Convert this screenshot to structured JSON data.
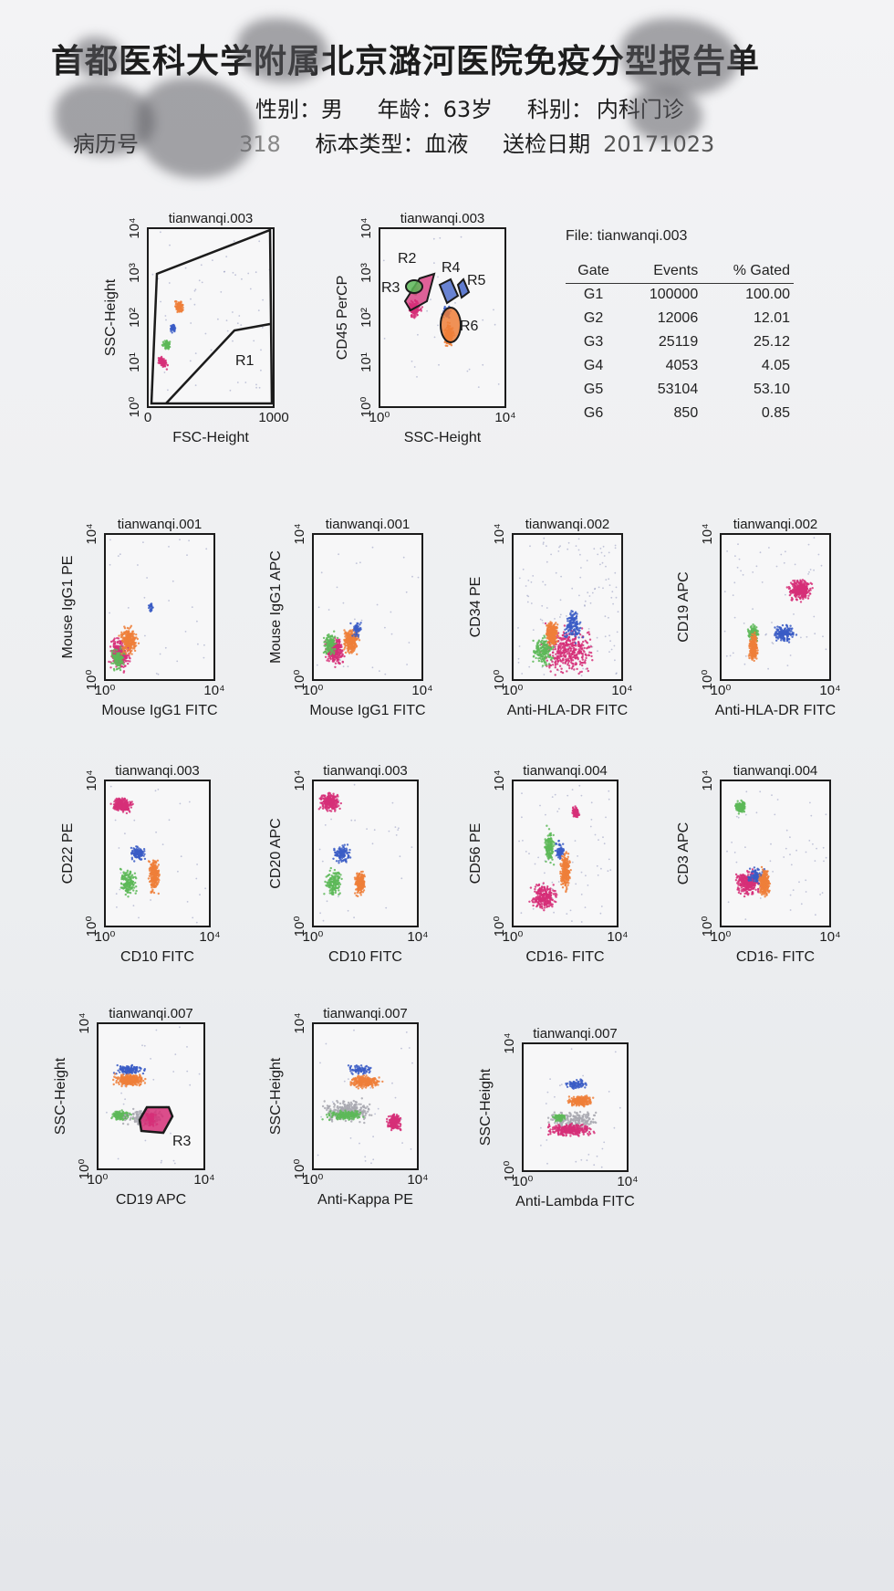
{
  "header": {
    "title": "首都医科大学附属北京潞河医院免疫分型报告单",
    "gender_label": "性别：男",
    "age_label": "年龄：63岁",
    "dept_label": "科别：",
    "dept_value": "内科门诊",
    "record_label": "病历号",
    "record_value": "318",
    "sample_label": "标本类型：血液",
    "date_label": "送检日期",
    "date_value": "20171023"
  },
  "gate_table": {
    "file": "File: tianwanqi.003",
    "columns": [
      "Gate",
      "Events",
      "% Gated"
    ],
    "rows": [
      [
        "G1",
        "100000",
        "100.00"
      ],
      [
        "G2",
        "12006",
        "12.01"
      ],
      [
        "G3",
        "25119",
        "25.12"
      ],
      [
        "G4",
        "4053",
        "4.05"
      ],
      [
        "G5",
        "53104",
        "53.10"
      ],
      [
        "G6",
        "850",
        "0.85"
      ]
    ]
  },
  "colors": {
    "magenta": "#d62f78",
    "orange": "#ef7f3a",
    "green": "#5db858",
    "blue": "#3a5cc6",
    "gray": "#a8a8b0"
  },
  "chart_data": [
    {
      "id": "p1",
      "type": "scatter",
      "title": "tianwanqi.003",
      "xlabel": "FSC-Height",
      "ylabel": "SSC-Height",
      "x_ticks": [
        "0",
        "1000"
      ],
      "y_ticks": [
        "10⁰",
        "10¹",
        "10²",
        "10³",
        "10⁴"
      ],
      "gate_labels": [
        "R1"
      ]
    },
    {
      "id": "p2",
      "type": "scatter",
      "title": "tianwanqi.003",
      "xlabel": "SSC-Height",
      "ylabel": "CD45 PerCP",
      "x_ticks": [
        "10⁰",
        "10⁴"
      ],
      "y_ticks": [
        "10⁰",
        "10¹",
        "10²",
        "10³",
        "10⁴"
      ],
      "gate_labels": [
        "R2",
        "R3",
        "R4",
        "R5",
        "R6"
      ]
    },
    {
      "id": "p3",
      "type": "scatter",
      "title": "tianwanqi.001",
      "xlabel": "Mouse IgG1 FITC",
      "ylabel": "Mouse IgG1 PE",
      "x_ticks": [
        "10⁰",
        "10⁴"
      ],
      "y_ticks": [
        "10⁰",
        "10⁴"
      ]
    },
    {
      "id": "p4",
      "type": "scatter",
      "title": "tianwanqi.001",
      "xlabel": "Mouse IgG1 FITC",
      "ylabel": "Mouse IgG1 APC",
      "x_ticks": [
        "10⁰",
        "10⁴"
      ],
      "y_ticks": [
        "10⁰",
        "10⁴"
      ]
    },
    {
      "id": "p5",
      "type": "scatter",
      "title": "tianwanqi.002",
      "xlabel": "Anti-HLA-DR FITC",
      "ylabel": "CD34 PE",
      "x_ticks": [
        "10⁰",
        "10⁴"
      ],
      "y_ticks": [
        "10⁰",
        "10⁴"
      ]
    },
    {
      "id": "p6",
      "type": "scatter",
      "title": "tianwanqi.002",
      "xlabel": "Anti-HLA-DR FITC",
      "ylabel": "CD19 APC",
      "x_ticks": [
        "10⁰",
        "10⁴"
      ],
      "y_ticks": [
        "10⁰",
        "10⁴"
      ]
    },
    {
      "id": "p7",
      "type": "scatter",
      "title": "tianwanqi.003",
      "xlabel": "CD10 FITC",
      "ylabel": "CD22 PE",
      "x_ticks": [
        "10⁰",
        "10⁴"
      ],
      "y_ticks": [
        "10⁰",
        "10⁴"
      ]
    },
    {
      "id": "p8",
      "type": "scatter",
      "title": "tianwanqi.003",
      "xlabel": "CD10 FITC",
      "ylabel": "CD20 APC",
      "x_ticks": [
        "10⁰",
        "10⁴"
      ],
      "y_ticks": [
        "10⁰",
        "10⁴"
      ]
    },
    {
      "id": "p9",
      "type": "scatter",
      "title": "tianwanqi.004",
      "xlabel": "CD16- FITC",
      "ylabel": "CD56 PE",
      "x_ticks": [
        "10⁰",
        "10⁴"
      ],
      "y_ticks": [
        "10⁰",
        "10⁴"
      ]
    },
    {
      "id": "p10",
      "type": "scatter",
      "title": "tianwanqi.004",
      "xlabel": "CD16- FITC",
      "ylabel": "CD3 APC",
      "x_ticks": [
        "10⁰",
        "10⁴"
      ],
      "y_ticks": [
        "10⁰",
        "10⁴"
      ]
    },
    {
      "id": "p11",
      "type": "scatter",
      "title": "tianwanqi.007",
      "xlabel": "CD19 APC",
      "ylabel": "SSC-Height",
      "x_ticks": [
        "10⁰",
        "10⁴"
      ],
      "y_ticks": [
        "10⁰",
        "10⁴"
      ],
      "gate_labels": [
        "R3"
      ]
    },
    {
      "id": "p12",
      "type": "scatter",
      "title": "tianwanqi.007",
      "xlabel": "Anti-Kappa PE",
      "ylabel": "SSC-Height",
      "x_ticks": [
        "10⁰",
        "10⁴"
      ],
      "y_ticks": [
        "10⁰",
        "10⁴"
      ]
    },
    {
      "id": "p13",
      "type": "scatter",
      "title": "tianwanqi.007",
      "xlabel": "Anti-Lambda FITC",
      "ylabel": "SSC-Height",
      "x_ticks": [
        "10⁰",
        "10⁴"
      ],
      "y_ticks": [
        "10⁰",
        "10⁴"
      ]
    }
  ]
}
